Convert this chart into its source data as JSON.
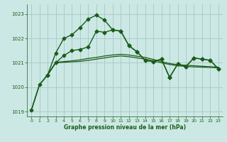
{
  "title": "Graphe pression niveau de la mer (hPa)",
  "background_color": "#cce8e4",
  "grid_color": "#aaccca",
  "line_color": "#1a5c1a",
  "ylim": [
    1018.8,
    1023.4
  ],
  "xlim": [
    -0.5,
    23.5
  ],
  "yticks": [
    1019,
    1020,
    1021,
    1022,
    1023
  ],
  "xticks": [
    0,
    1,
    2,
    3,
    4,
    5,
    6,
    7,
    8,
    9,
    10,
    11,
    12,
    13,
    14,
    15,
    16,
    17,
    18,
    19,
    20,
    21,
    22,
    23
  ],
  "series": [
    {
      "x": [
        0,
        1,
        2,
        3,
        4,
        5,
        6,
        7,
        8,
        9,
        10,
        11,
        12,
        13,
        14,
        15,
        16,
        17,
        18,
        19,
        20,
        21,
        22,
        23
      ],
      "y": [
        1019.05,
        1020.1,
        1020.5,
        1021.4,
        1022.0,
        1022.15,
        1022.45,
        1022.8,
        1022.95,
        1022.75,
        1022.35,
        1022.3,
        1021.7,
        1021.45,
        1021.1,
        1021.05,
        1021.15,
        1020.4,
        1020.95,
        1020.85,
        1021.2,
        1021.15,
        1021.1,
        1020.75
      ],
      "marker": "D",
      "markersize": 2.5,
      "linewidth": 1.0
    },
    {
      "x": [
        2,
        3,
        4,
        5,
        6,
        7,
        8,
        9,
        10,
        11,
        12,
        13,
        14,
        15,
        16,
        17,
        18,
        19,
        20,
        21,
        22,
        23
      ],
      "y": [
        1020.5,
        1021.0,
        1021.3,
        1021.5,
        1021.55,
        1021.65,
        1022.3,
        1022.25,
        1022.35,
        1022.3,
        1021.7,
        1021.45,
        1021.1,
        1021.05,
        1021.15,
        1020.4,
        1020.95,
        1020.85,
        1021.2,
        1021.15,
        1021.1,
        1020.75
      ],
      "marker": "D",
      "markersize": 2.5,
      "linewidth": 1.0
    },
    {
      "x": [
        0,
        1,
        2,
        3,
        4,
        5,
        6,
        7,
        8,
        9,
        10,
        11,
        12,
        13,
        14,
        15,
        16,
        17,
        18,
        19,
        20,
        21,
        22,
        23
      ],
      "y": [
        1019.05,
        1020.1,
        1020.5,
        1021.0,
        1021.02,
        1021.04,
        1021.06,
        1021.1,
        1021.15,
        1021.2,
        1021.25,
        1021.28,
        1021.25,
        1021.2,
        1021.15,
        1021.08,
        1021.0,
        1020.93,
        1020.88,
        1020.85,
        1020.83,
        1020.82,
        1020.81,
        1020.79
      ],
      "marker": null,
      "markersize": 0,
      "linewidth": 0.9
    },
    {
      "x": [
        0,
        1,
        2,
        3,
        4,
        5,
        6,
        7,
        8,
        9,
        10,
        11,
        12,
        13,
        14,
        15,
        16,
        17,
        18,
        19,
        20,
        21,
        22,
        23
      ],
      "y": [
        1019.05,
        1020.1,
        1020.5,
        1021.02,
        1021.05,
        1021.08,
        1021.12,
        1021.18,
        1021.22,
        1021.28,
        1021.32,
        1021.35,
        1021.32,
        1021.27,
        1021.22,
        1021.14,
        1021.05,
        1020.97,
        1020.92,
        1020.9,
        1020.88,
        1020.86,
        1020.84,
        1020.82
      ],
      "marker": null,
      "markersize": 0,
      "linewidth": 0.9
    }
  ]
}
